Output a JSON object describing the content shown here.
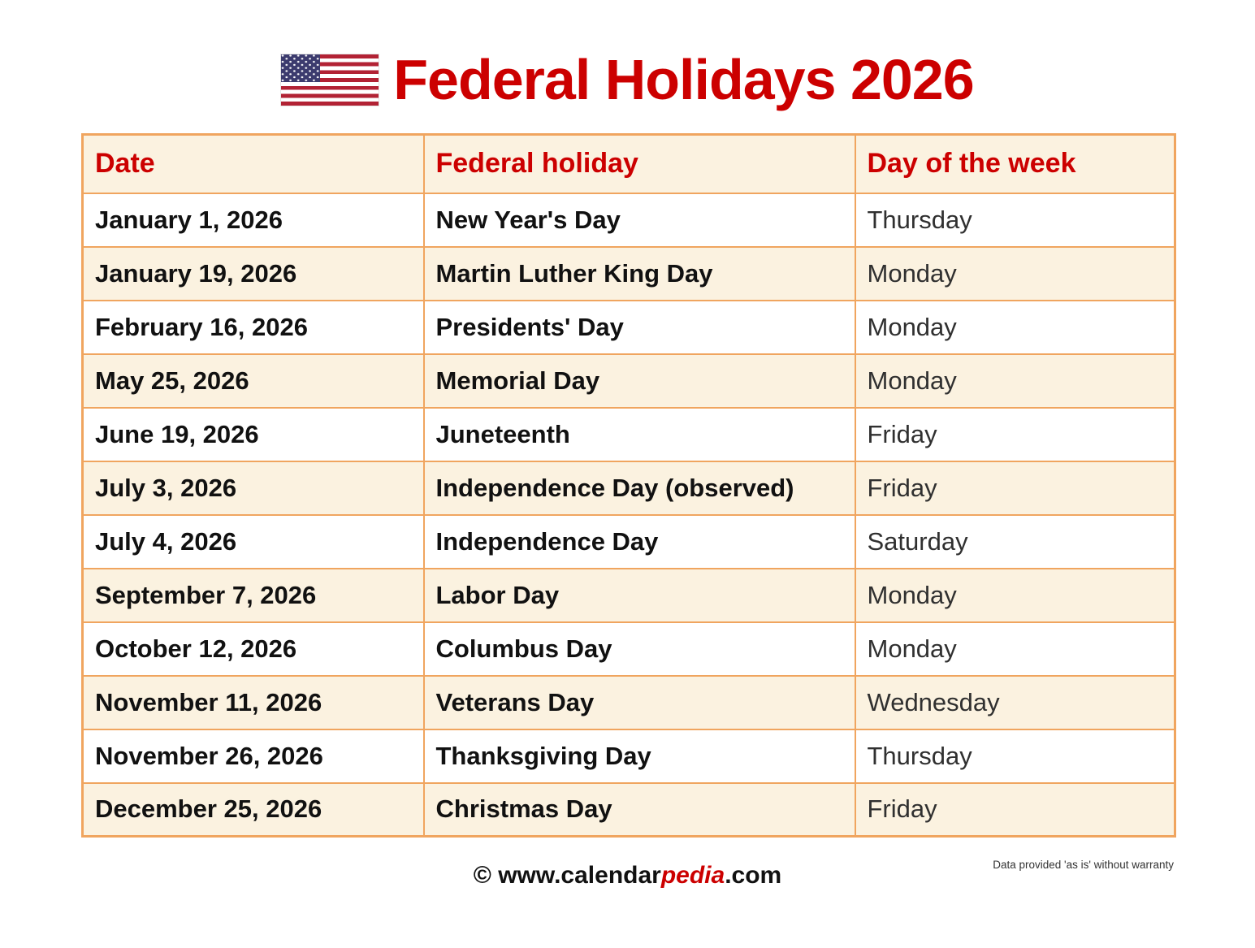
{
  "header": {
    "title": "Federal Holidays 2026",
    "flag_icon": "us-flag-icon"
  },
  "table": {
    "headers": {
      "date": "Date",
      "holiday": "Federal holiday",
      "day": "Day of the week"
    },
    "rows": [
      {
        "date": "January 1, 2026",
        "holiday": "New Year's Day",
        "day": "Thursday"
      },
      {
        "date": "January 19, 2026",
        "holiday": "Martin Luther King Day",
        "day": "Monday"
      },
      {
        "date": "February 16, 2026",
        "holiday": "Presidents' Day",
        "day": "Monday"
      },
      {
        "date": "May 25, 2026",
        "holiday": "Memorial Day",
        "day": "Monday"
      },
      {
        "date": "June 19, 2026",
        "holiday": "Juneteenth",
        "day": "Friday"
      },
      {
        "date": "July 3, 2026",
        "holiday": "Independence Day (observed)",
        "day": "Friday"
      },
      {
        "date": "July 4, 2026",
        "holiday": "Independence Day",
        "day": "Saturday"
      },
      {
        "date": "September 7, 2026",
        "holiday": "Labor Day",
        "day": "Monday"
      },
      {
        "date": "October 12, 2026",
        "holiday": "Columbus Day",
        "day": "Monday"
      },
      {
        "date": "November 11, 2026",
        "holiday": "Veterans Day",
        "day": "Wednesday"
      },
      {
        "date": "November 26, 2026",
        "holiday": "Thanksgiving Day",
        "day": "Thursday"
      },
      {
        "date": "December 25, 2026",
        "holiday": "Christmas Day",
        "day": "Friday"
      }
    ]
  },
  "footer": {
    "copyright_prefix": "© www.calendar",
    "copyright_highlight": "pedia",
    "copyright_suffix": ".com",
    "disclaimer": "Data provided 'as is' without warranty"
  },
  "colors": {
    "accent_red": "#cc0000",
    "border_orange": "#f0a55f",
    "row_cream": "#fbf2e0",
    "flag_red": "#b22234",
    "flag_blue": "#3c3b6e"
  }
}
